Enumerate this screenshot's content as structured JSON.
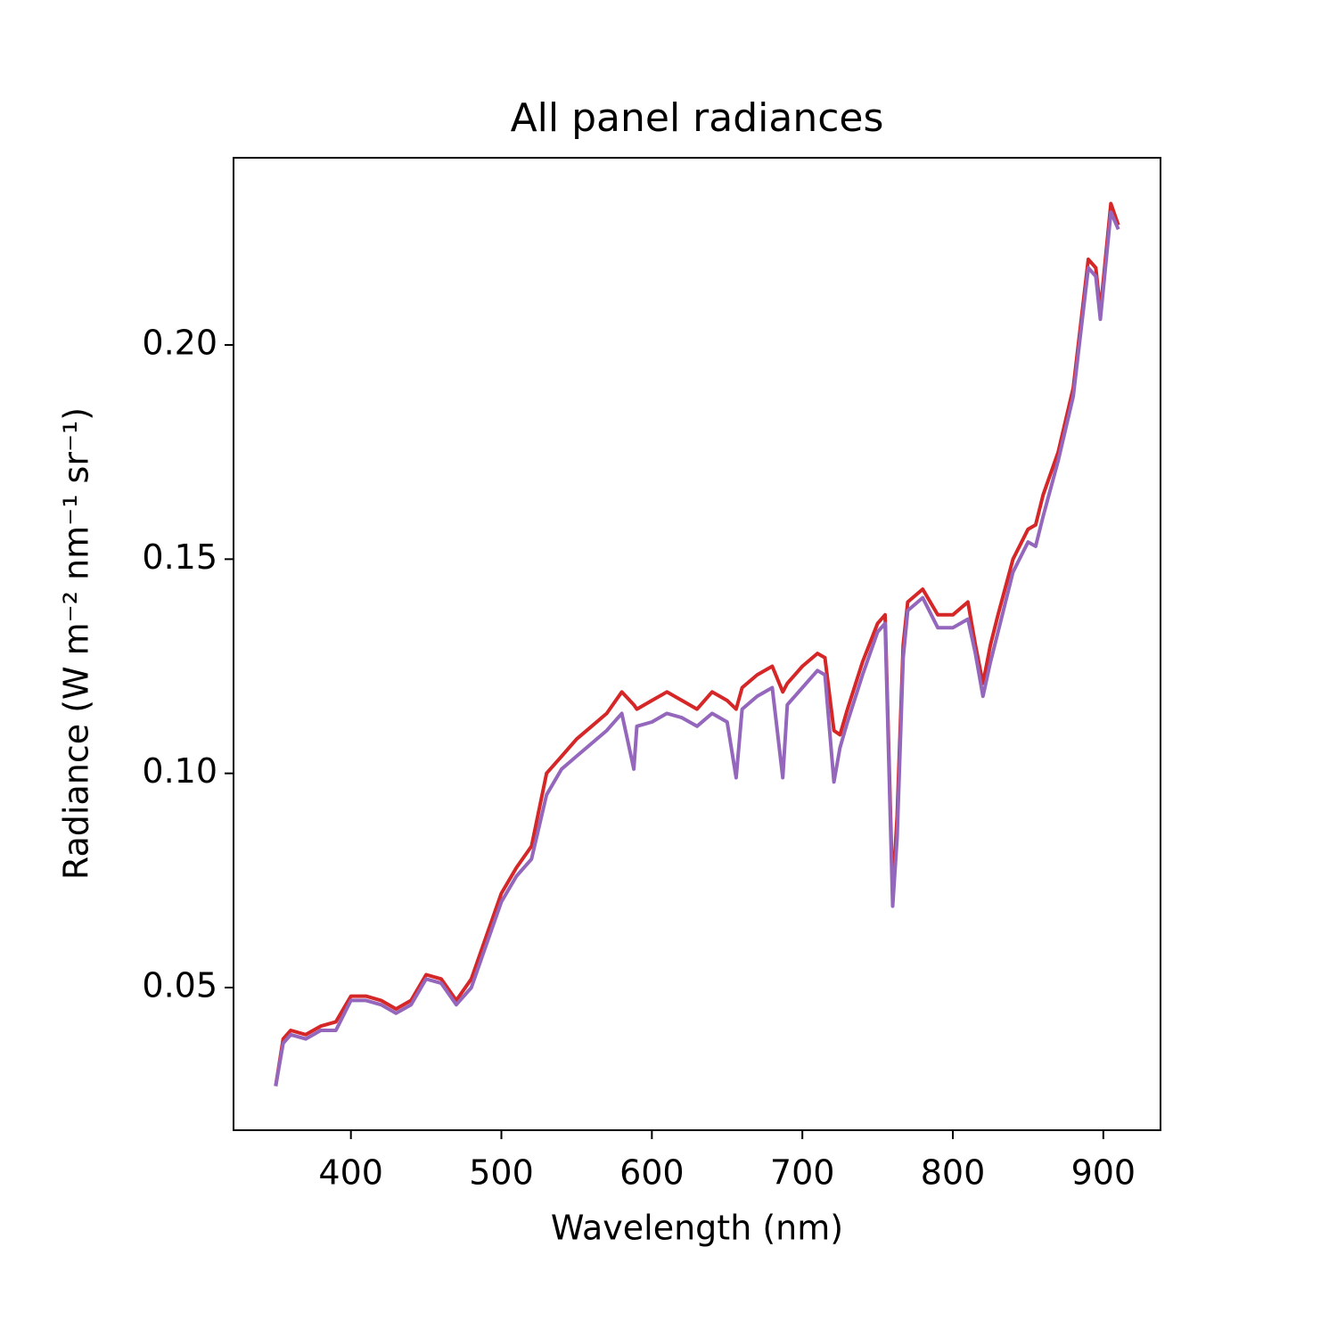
{
  "chart_data": {
    "type": "line",
    "title": "All panel radiances",
    "xlabel": "Wavelength (nm)",
    "ylabel": "Radiance (W m⁻² nm⁻¹ sr⁻¹)",
    "x": [
      350,
      355,
      360,
      370,
      380,
      390,
      400,
      410,
      420,
      430,
      440,
      450,
      460,
      470,
      480,
      490,
      500,
      510,
      520,
      530,
      540,
      550,
      560,
      570,
      580,
      588,
      590,
      600,
      610,
      620,
      630,
      640,
      650,
      656,
      660,
      670,
      680,
      687,
      690,
      700,
      710,
      715,
      721,
      725,
      730,
      740,
      750,
      755,
      760,
      763,
      767,
      770,
      780,
      790,
      800,
      810,
      815,
      820,
      825,
      830,
      840,
      850,
      855,
      860,
      870,
      880,
      890,
      895,
      898,
      905,
      910
    ],
    "series": [
      {
        "color": "#d62728",
        "values": [
          0.027,
          0.038,
          0.04,
          0.039,
          0.041,
          0.042,
          0.048,
          0.048,
          0.047,
          0.045,
          0.047,
          0.053,
          0.052,
          0.047,
          0.052,
          0.062,
          0.072,
          0.078,
          0.083,
          0.1,
          0.104,
          0.108,
          0.111,
          0.114,
          0.119,
          0.116,
          0.115,
          0.117,
          0.119,
          0.117,
          0.115,
          0.119,
          0.117,
          0.115,
          0.12,
          0.123,
          0.125,
          0.119,
          0.121,
          0.125,
          0.128,
          0.127,
          0.11,
          0.109,
          0.115,
          0.126,
          0.135,
          0.137,
          0.072,
          0.09,
          0.13,
          0.14,
          0.143,
          0.137,
          0.137,
          0.14,
          0.13,
          0.121,
          0.13,
          0.137,
          0.15,
          0.157,
          0.158,
          0.165,
          0.175,
          0.19,
          0.22,
          0.218,
          0.208,
          0.233,
          0.228
        ]
      },
      {
        "color": "#9467bd",
        "values": [
          0.027,
          0.037,
          0.039,
          0.038,
          0.04,
          0.04,
          0.047,
          0.047,
          0.046,
          0.044,
          0.046,
          0.052,
          0.051,
          0.046,
          0.05,
          0.06,
          0.07,
          0.076,
          0.08,
          0.095,
          0.101,
          0.104,
          0.107,
          0.11,
          0.114,
          0.101,
          0.111,
          0.112,
          0.114,
          0.113,
          0.111,
          0.114,
          0.112,
          0.099,
          0.115,
          0.118,
          0.12,
          0.099,
          0.116,
          0.12,
          0.124,
          0.123,
          0.098,
          0.106,
          0.112,
          0.123,
          0.133,
          0.135,
          0.069,
          0.085,
          0.127,
          0.138,
          0.141,
          0.134,
          0.134,
          0.136,
          0.128,
          0.118,
          0.126,
          0.133,
          0.147,
          0.154,
          0.153,
          0.16,
          0.173,
          0.188,
          0.218,
          0.216,
          0.206,
          0.231,
          0.227
        ]
      }
    ],
    "xlim": [
      322,
      938
    ],
    "xticks": [
      400,
      500,
      600,
      700,
      800,
      900
    ],
    "ylim": [
      0.0167,
      0.2437
    ],
    "yticks": [
      {
        "value": 0.05,
        "label": "0.05"
      },
      {
        "value": 0.1,
        "label": "0.10"
      },
      {
        "value": 0.15,
        "label": "0.15"
      },
      {
        "value": 0.2,
        "label": "0.20"
      }
    ],
    "grid": false
  }
}
